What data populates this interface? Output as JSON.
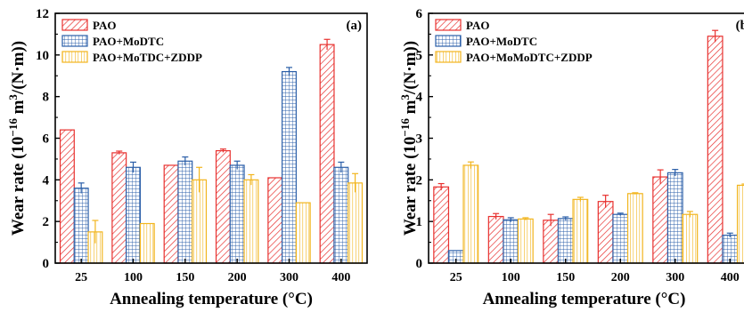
{
  "chart_data": [
    {
      "type": "bar",
      "panel_label": "(a)",
      "categories": [
        "25",
        "100",
        "150",
        "200",
        "300",
        "400"
      ],
      "xlabel": "Annealing temperature (°C)",
      "ylabel_prefix": "Wear rate (10",
      "ylabel_exp1": "−16",
      "ylabel_mid": " m",
      "ylabel_exp2": "3",
      "ylabel_suffix": "/(N·m))",
      "ylim": [
        0,
        12
      ],
      "yticks": [
        "0",
        "2",
        "4",
        "6",
        "8",
        "10",
        "12"
      ],
      "legend_position": "top-left",
      "grid": false,
      "series": [
        {
          "name": "PAO",
          "color": "#e8312f",
          "values": [
            6.4,
            5.3,
            4.7,
            5.4,
            4.1,
            10.5
          ],
          "errors": [
            0,
            0.08,
            0,
            0.08,
            0,
            0.25
          ]
        },
        {
          "name": "PAO+MoDTC",
          "color": "#2a5ea8",
          "values": [
            3.6,
            4.6,
            4.9,
            4.7,
            9.2,
            4.6
          ],
          "errors": [
            0.25,
            0.25,
            0.2,
            0.2,
            0.2,
            0.25
          ]
        },
        {
          "name": "PAO+MoTDC+ZDDP",
          "color": "#f2b51d",
          "values": [
            1.5,
            1.9,
            4.0,
            4.0,
            2.9,
            3.85
          ],
          "errors": [
            0.55,
            0,
            0.6,
            0.25,
            0,
            0.45
          ]
        }
      ]
    },
    {
      "type": "bar",
      "panel_label": "(b)",
      "categories": [
        "25",
        "100",
        "150",
        "200",
        "300",
        "400"
      ],
      "xlabel": "Annealing temperature (°C)",
      "ylabel_prefix": "Wear rate (10",
      "ylabel_exp1": "−16",
      "ylabel_mid": " m",
      "ylabel_exp2": "3",
      "ylabel_suffix": "/(N·m))",
      "ylim": [
        0,
        6
      ],
      "yticks": [
        "0",
        "1",
        "2",
        "3",
        "4",
        "5",
        "6"
      ],
      "legend_position": "top-left",
      "grid": false,
      "series": [
        {
          "name": "PAO",
          "color": "#e8312f",
          "values": [
            1.83,
            1.12,
            1.03,
            1.48,
            2.07,
            5.45
          ],
          "errors": [
            0.08,
            0.07,
            0.14,
            0.15,
            0.17,
            0.14
          ]
        },
        {
          "name": "PAO+MoDTC",
          "color": "#2a5ea8",
          "values": [
            0.3,
            1.04,
            1.07,
            1.17,
            2.17,
            0.67
          ],
          "errors": [
            0,
            0.05,
            0.04,
            0.03,
            0.08,
            0.05
          ]
        },
        {
          "name": "PAO+MoMoDTC+ZDDP",
          "color": "#f2b51d",
          "values": [
            2.35,
            1.06,
            1.53,
            1.67,
            1.17,
            1.87
          ],
          "errors": [
            0.08,
            0.03,
            0.05,
            0.02,
            0.07,
            0.03
          ]
        }
      ]
    }
  ]
}
